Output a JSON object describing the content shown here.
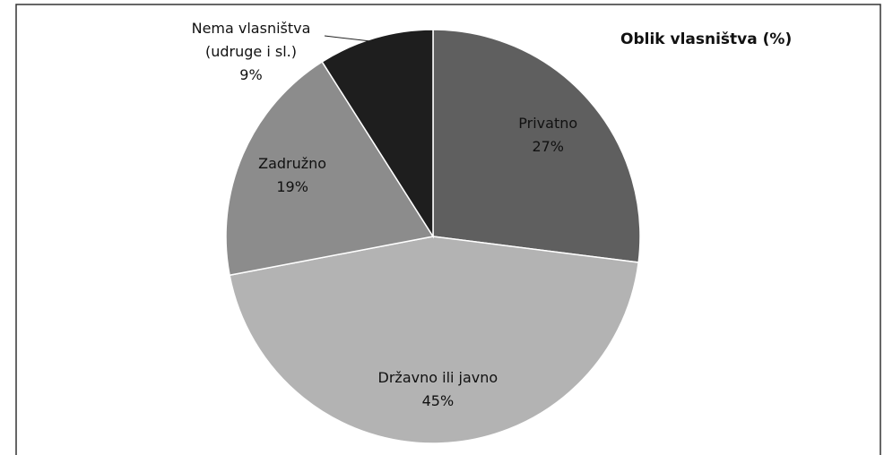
{
  "chart_data": {
    "type": "pie",
    "title": "Oblik vlasništva (%)",
    "categories": [
      "Privatno",
      "Državno ili javno",
      "Zadružno",
      "Nema vlasništva (udruge i sl.)"
    ],
    "values": [
      27,
      45,
      19,
      9
    ],
    "value_labels": [
      "27%",
      "45%",
      "19%",
      "9%"
    ],
    "colors": [
      "#5f5f5f",
      "#b3b3b3",
      "#8c8c8c",
      "#1e1e1e"
    ]
  }
}
